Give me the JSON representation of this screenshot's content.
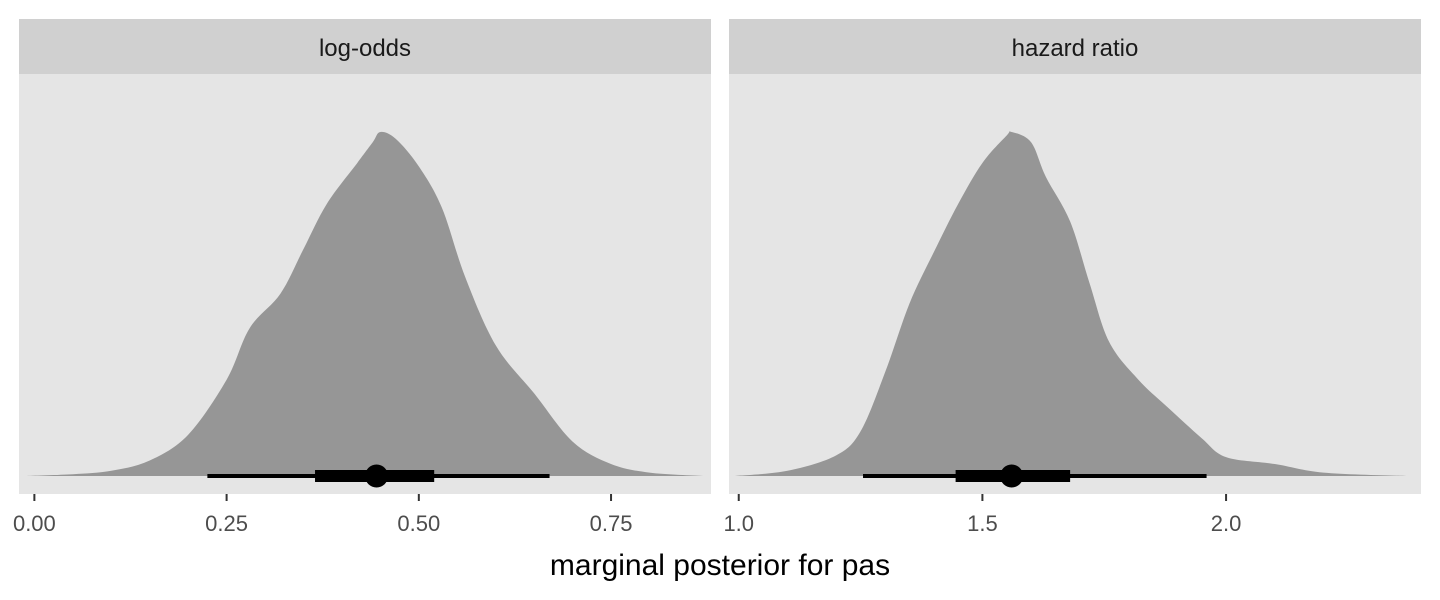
{
  "chart_data": {
    "type": "area",
    "xlabel": "marginal posterior for pas",
    "colors": {
      "panel_background": "#e5e5e5",
      "strip_background": "#d0d0d0",
      "density_fill": "#969696",
      "interval": "#000000"
    },
    "panels": [
      {
        "strip_label": "log-odds",
        "xlim": [
          -0.02,
          0.88
        ],
        "x_ticks": [
          0.0,
          0.25,
          0.5,
          0.75
        ],
        "x_tick_labels": [
          "0.00",
          "0.25",
          "0.50",
          "0.75"
        ],
        "density": [
          [
            -0.01,
            0.0
          ],
          [
            0.05,
            0.005
          ],
          [
            0.1,
            0.015
          ],
          [
            0.15,
            0.045
          ],
          [
            0.2,
            0.12
          ],
          [
            0.25,
            0.28
          ],
          [
            0.28,
            0.43
          ],
          [
            0.32,
            0.53
          ],
          [
            0.35,
            0.66
          ],
          [
            0.38,
            0.79
          ],
          [
            0.42,
            0.91
          ],
          [
            0.44,
            0.97
          ],
          [
            0.45,
            1.0
          ],
          [
            0.47,
            0.98
          ],
          [
            0.5,
            0.9
          ],
          [
            0.53,
            0.78
          ],
          [
            0.56,
            0.58
          ],
          [
            0.6,
            0.38
          ],
          [
            0.65,
            0.24
          ],
          [
            0.7,
            0.1
          ],
          [
            0.75,
            0.035
          ],
          [
            0.8,
            0.01
          ],
          [
            0.87,
            0.0
          ]
        ],
        "point_estimate": 0.445,
        "interval_66": [
          0.365,
          0.52
        ],
        "interval_95": [
          0.225,
          0.67
        ]
      },
      {
        "strip_label": "hazard ratio",
        "xlim": [
          0.98,
          2.4
        ],
        "x_ticks": [
          1.0,
          1.5,
          2.0
        ],
        "x_tick_labels": [
          "1.0",
          "1.5",
          "2.0"
        ],
        "density": [
          [
            0.99,
            0.0
          ],
          [
            1.1,
            0.015
          ],
          [
            1.2,
            0.06
          ],
          [
            1.25,
            0.13
          ],
          [
            1.3,
            0.3
          ],
          [
            1.35,
            0.5
          ],
          [
            1.4,
            0.65
          ],
          [
            1.45,
            0.79
          ],
          [
            1.5,
            0.91
          ],
          [
            1.55,
            0.99
          ],
          [
            1.56,
            1.0
          ],
          [
            1.6,
            0.97
          ],
          [
            1.63,
            0.87
          ],
          [
            1.68,
            0.74
          ],
          [
            1.72,
            0.56
          ],
          [
            1.76,
            0.39
          ],
          [
            1.82,
            0.28
          ],
          [
            1.88,
            0.2
          ],
          [
            1.95,
            0.11
          ],
          [
            2.0,
            0.055
          ],
          [
            2.1,
            0.035
          ],
          [
            2.2,
            0.01
          ],
          [
            2.37,
            0.0
          ]
        ],
        "point_estimate": 1.56,
        "interval_66": [
          1.445,
          1.68
        ],
        "interval_95": [
          1.255,
          1.96
        ]
      }
    ]
  }
}
